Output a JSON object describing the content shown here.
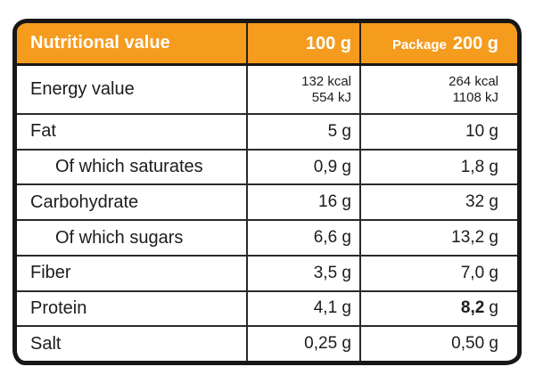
{
  "colors": {
    "accent": "#F59B1E",
    "ink": "#1D1C1A",
    "line": "#2B2A28",
    "header_text": "#FFFFFF",
    "background": "#FFFFFF"
  },
  "header": {
    "title": "Nutritional value",
    "per100_label": "100 g",
    "package_prefix": "Package",
    "package_amount": "200 g"
  },
  "rows": [
    {
      "label": "Energy value",
      "per100_line1": "132 kcal",
      "per100_line2": "554 kJ",
      "package_line1": "264 kcal",
      "package_line2": "1108 kJ"
    },
    {
      "label": "Fat",
      "per100": "5 g",
      "package": "10 g"
    },
    {
      "label": "Of which saturates",
      "per100": "0,9 g",
      "package": "1,8 g"
    },
    {
      "label": "Carbohydrate",
      "per100": "16 g",
      "package": "32 g"
    },
    {
      "label": "Of which sugars",
      "per100": "6,6 g",
      "package": "13,2 g"
    },
    {
      "label": "Fiber",
      "per100": "3,5 g",
      "package": "7,0 g"
    },
    {
      "label": "Protein",
      "per100": "4,1 g",
      "package_bold": "8,2",
      "package_unit": "g"
    },
    {
      "label": "Salt",
      "per100": "0,25 g",
      "package": "0,50 g"
    }
  ]
}
